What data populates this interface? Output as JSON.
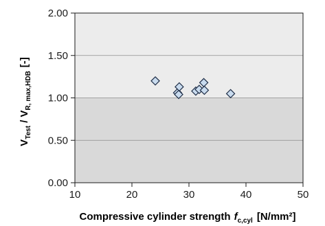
{
  "chart_data": {
    "type": "scatter",
    "title": "",
    "xlabel": {
      "main": "Compressive cylinder strength",
      "symbol": "f",
      "subscript": "c,cyl",
      "unit": "[N/mm²]"
    },
    "ylabel": {
      "v1": "V",
      "sub1": "Test",
      "sep": " / ",
      "v2": "V",
      "sub2": "R, max,HDB",
      "unit": "[-]"
    },
    "xlim": [
      10,
      50
    ],
    "ylim": [
      0.0,
      2.0
    ],
    "x_ticks": [
      "10",
      "20",
      "30",
      "40",
      "50"
    ],
    "y_ticks": [
      "0.00",
      "0.50",
      "1.00",
      "1.50",
      "2.00"
    ],
    "grid": true,
    "background_bands": [
      {
        "from": 0.0,
        "to": 1.0,
        "color": "#d9d9d9"
      },
      {
        "from": 1.0,
        "to": 2.0,
        "color": "#ececec"
      }
    ],
    "marker": {
      "shape": "diamond",
      "fill": "#c9dbee",
      "stroke": "#1f2e47"
    },
    "series": [
      {
        "points": [
          {
            "x": 24.1,
            "y": 1.2
          },
          {
            "x": 28.0,
            "y": 1.06
          },
          {
            "x": 28.2,
            "y": 1.04
          },
          {
            "x": 28.3,
            "y": 1.13
          },
          {
            "x": 31.2,
            "y": 1.08
          },
          {
            "x": 31.8,
            "y": 1.1
          },
          {
            "x": 32.6,
            "y": 1.18
          },
          {
            "x": 32.7,
            "y": 1.09
          },
          {
            "x": 37.3,
            "y": 1.05
          }
        ]
      }
    ]
  }
}
